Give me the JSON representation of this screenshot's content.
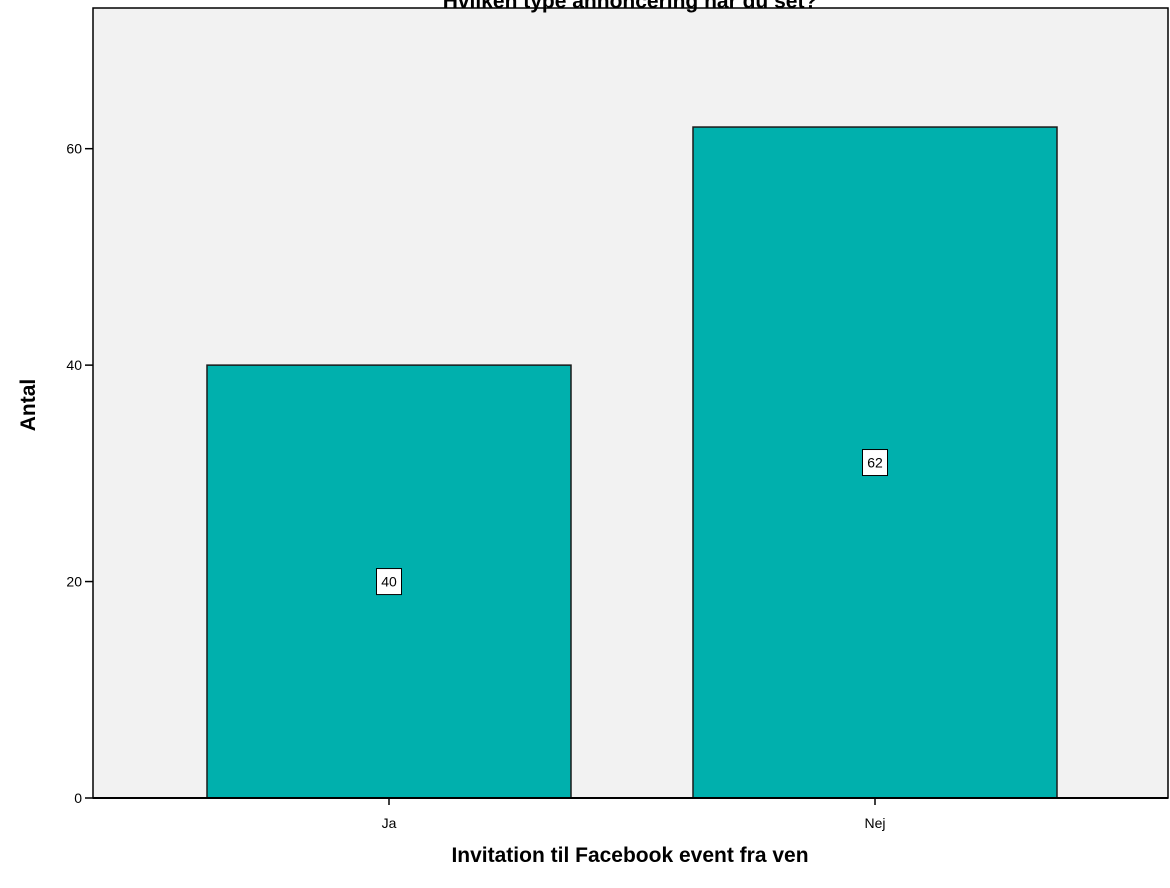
{
  "chart_data": {
    "type": "bar",
    "title": "Hvilken type annoncering har du set?",
    "xlabel": "Invitation til Facebook event fra ven",
    "ylabel": "Antal",
    "categories": [
      "Ja",
      "Nej"
    ],
    "values": [
      40,
      62
    ],
    "data_labels": [
      "40",
      "62"
    ],
    "ylim": [
      0,
      73
    ],
    "yticks": [
      0,
      20,
      40,
      60
    ],
    "ytick_labels": [
      "0",
      "20",
      "40",
      "60"
    ],
    "grid": false,
    "legend": "none",
    "colors": {
      "bar_fill": "#00b0ad",
      "bar_stroke": "#1a1a1a",
      "plot_background": "#f2f2f2",
      "axis": "#000000",
      "label_box": "#ffffff"
    }
  }
}
